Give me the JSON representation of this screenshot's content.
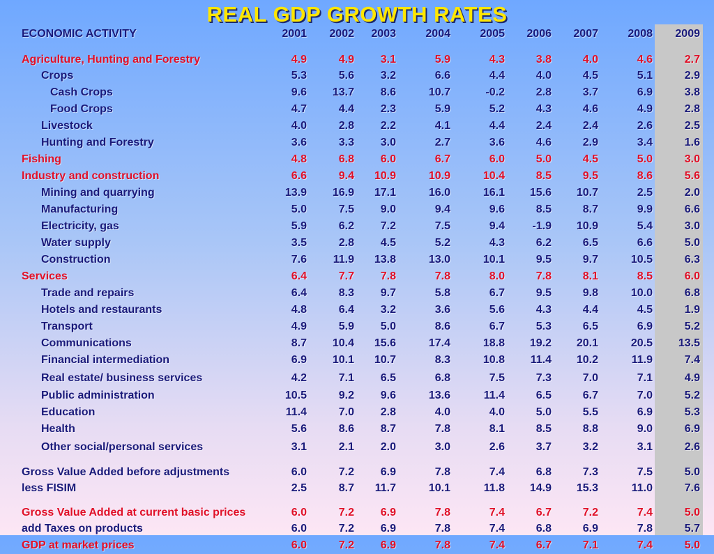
{
  "title": "REAL GDP GROWTH RATES",
  "header": {
    "label": "ECONOMIC ACTIVITY",
    "years": [
      "2001",
      "2002",
      "2003",
      "2004",
      "2005",
      "2006",
      "2007",
      "2008",
      "2009"
    ]
  },
  "rows": [
    {
      "label": "Agriculture, Hunting and Forestry",
      "indent": 0,
      "color": "red",
      "gap": true,
      "values": [
        "4.9",
        "4.9",
        "3.1",
        "5.9",
        "4.3",
        "3.8",
        "4.0",
        "4.6",
        "2.7"
      ]
    },
    {
      "label": "Crops",
      "indent": 1,
      "color": "blue",
      "values": [
        "5.3",
        "5.6",
        "3.2",
        "6.6",
        "4.4",
        "4.0",
        "4.5",
        "5.1",
        "2.9"
      ]
    },
    {
      "label": "Cash Crops",
      "indent": 2,
      "color": "blue",
      "values": [
        "9.6",
        "13.7",
        "8.6",
        "10.7",
        "-0.2",
        "2.8",
        "3.7",
        "6.9",
        "3.8"
      ]
    },
    {
      "label": "Food Crops",
      "indent": 2,
      "color": "blue",
      "values": [
        "4.7",
        "4.4",
        "2.3",
        "5.9",
        "5.2",
        "4.3",
        "4.6",
        "4.9",
        "2.8"
      ]
    },
    {
      "label": "Livestock",
      "indent": 1,
      "color": "blue",
      "values": [
        "4.0",
        "2.8",
        "2.2",
        "4.1",
        "4.4",
        "2.4",
        "2.4",
        "2.6",
        "2.5"
      ]
    },
    {
      "label": "Hunting and Forestry",
      "indent": 1,
      "color": "blue",
      "values": [
        "3.6",
        "3.3",
        "3.0",
        "2.7",
        "3.6",
        "4.6",
        "2.9",
        "3.4",
        "1.6"
      ]
    },
    {
      "label": "Fishing",
      "indent": 0,
      "color": "red",
      "values": [
        "4.8",
        "6.8",
        "6.0",
        "6.7",
        "6.0",
        "5.0",
        "4.5",
        "5.0",
        "3.0"
      ]
    },
    {
      "label": "Industry and construction",
      "indent": 0,
      "color": "red",
      "values": [
        "6.6",
        "9.4",
        "10.9",
        "10.9",
        "10.4",
        "8.5",
        "9.5",
        "8.6",
        "5.6"
      ]
    },
    {
      "label": "Mining and quarrying",
      "indent": 1,
      "color": "blue",
      "values": [
        "13.9",
        "16.9",
        "17.1",
        "16.0",
        "16.1",
        "15.6",
        "10.7",
        "2.5",
        "2.0"
      ]
    },
    {
      "label": "Manufacturing",
      "indent": 1,
      "color": "blue",
      "values": [
        "5.0",
        "7.5",
        "9.0",
        "9.4",
        "9.6",
        "8.5",
        "8.7",
        "9.9",
        "6.6"
      ]
    },
    {
      "label": "Electricity, gas",
      "indent": 1,
      "color": "blue",
      "values": [
        "5.9",
        "6.2",
        "7.2",
        "7.5",
        "9.4",
        "-1.9",
        "10.9",
        "5.4",
        "3.0"
      ]
    },
    {
      "label": "Water supply",
      "indent": 1,
      "color": "blue",
      "values": [
        "3.5",
        "2.8",
        "4.5",
        "5.2",
        "4.3",
        "6.2",
        "6.5",
        "6.6",
        "5.0"
      ]
    },
    {
      "label": "Construction",
      "indent": 1,
      "color": "blue",
      "values": [
        "7.6",
        "11.9",
        "13.8",
        "13.0",
        "10.1",
        "9.5",
        "9.7",
        "10.5",
        "6.3"
      ]
    },
    {
      "label": "Services",
      "indent": 0,
      "color": "red",
      "values": [
        "6.4",
        "7.7",
        "7.8",
        "7.8",
        "8.0",
        "7.8",
        "8.1",
        "8.5",
        "6.0"
      ]
    },
    {
      "label": "Trade and repairs",
      "indent": 1,
      "color": "blue",
      "values": [
        "6.4",
        "8.3",
        "9.7",
        "5.8",
        "6.7",
        "9.5",
        "9.8",
        "10.0",
        "6.8"
      ]
    },
    {
      "label": "Hotels and restaurants",
      "indent": 1,
      "color": "blue",
      "values": [
        "4.8",
        "6.4",
        "3.2",
        "3.6",
        "5.6",
        "4.3",
        "4.4",
        "4.5",
        "1.9"
      ]
    },
    {
      "label": "Transport",
      "indent": 1,
      "color": "blue",
      "values": [
        "4.9",
        "5.9",
        "5.0",
        "8.6",
        "6.7",
        "5.3",
        "6.5",
        "6.9",
        "5.2"
      ]
    },
    {
      "label": "Communications",
      "indent": 1,
      "color": "blue",
      "values": [
        "8.7",
        "10.4",
        "15.6",
        "17.4",
        "18.8",
        "19.2",
        "20.1",
        "20.5",
        "13.5"
      ]
    },
    {
      "label": "Financial intermediation",
      "indent": 1,
      "color": "blue",
      "values": [
        "6.9",
        "10.1",
        "10.7",
        "8.3",
        "10.8",
        "11.4",
        "10.2",
        "11.9",
        "7.4"
      ]
    },
    {
      "label": "Real estate/ business services",
      "indent": 1,
      "color": "blue",
      "tall": true,
      "values": [
        "4.2",
        "7.1",
        "6.5",
        "6.8",
        "7.5",
        "7.3",
        "7.0",
        "7.1",
        "4.9"
      ]
    },
    {
      "label": "Public administration",
      "indent": 1,
      "color": "blue",
      "values": [
        "10.5",
        "9.2",
        "9.6",
        "13.6",
        "11.4",
        "6.5",
        "6.7",
        "7.0",
        "5.2"
      ]
    },
    {
      "label": "Education",
      "indent": 1,
      "color": "blue",
      "values": [
        "11.4",
        "7.0",
        "2.8",
        "4.0",
        "4.0",
        "5.0",
        "5.5",
        "6.9",
        "5.3"
      ]
    },
    {
      "label": "Health",
      "indent": 1,
      "color": "blue",
      "values": [
        "5.6",
        "8.6",
        "8.7",
        "7.8",
        "8.1",
        "8.5",
        "8.8",
        "9.0",
        "6.9"
      ]
    },
    {
      "label": "Other social/personal services",
      "indent": 1,
      "color": "blue",
      "tall": true,
      "values": [
        "3.1",
        "2.1",
        "2.0",
        "3.0",
        "2.6",
        "3.7",
        "3.2",
        "3.1",
        "2.6"
      ]
    },
    {
      "label": "Gross Value Added before adjustments",
      "indent": 0,
      "color": "blue",
      "gap": true,
      "values": [
        "6.0",
        "7.2",
        "6.9",
        "7.8",
        "7.4",
        "6.8",
        "7.3",
        "7.5",
        "5.0"
      ]
    },
    {
      "label": "less FISIM",
      "indent": 0,
      "color": "blue",
      "values": [
        "2.5",
        "8.7",
        "11.7",
        "10.1",
        "11.8",
        "14.9",
        "15.3",
        "11.0",
        "7.6"
      ]
    },
    {
      "label": "Gross Value Added at current basic prices",
      "indent": 0,
      "color": "red",
      "gap": true,
      "values": [
        "6.0",
        "7.2",
        "6.9",
        "7.8",
        "7.4",
        "6.7",
        "7.2",
        "7.4",
        "5.0"
      ]
    },
    {
      "label": "add Taxes on products",
      "indent": 0,
      "color": "blue",
      "values": [
        "6.0",
        "7.2",
        "6.9",
        "7.8",
        "7.4",
        "6.8",
        "6.9",
        "7.8",
        "5.7"
      ]
    },
    {
      "label": "GDP at market prices",
      "indent": 0,
      "color": "red",
      "values": [
        "6.0",
        "7.2",
        "6.9",
        "7.8",
        "7.4",
        "6.7",
        "7.1",
        "7.4",
        "5.0"
      ]
    }
  ]
}
